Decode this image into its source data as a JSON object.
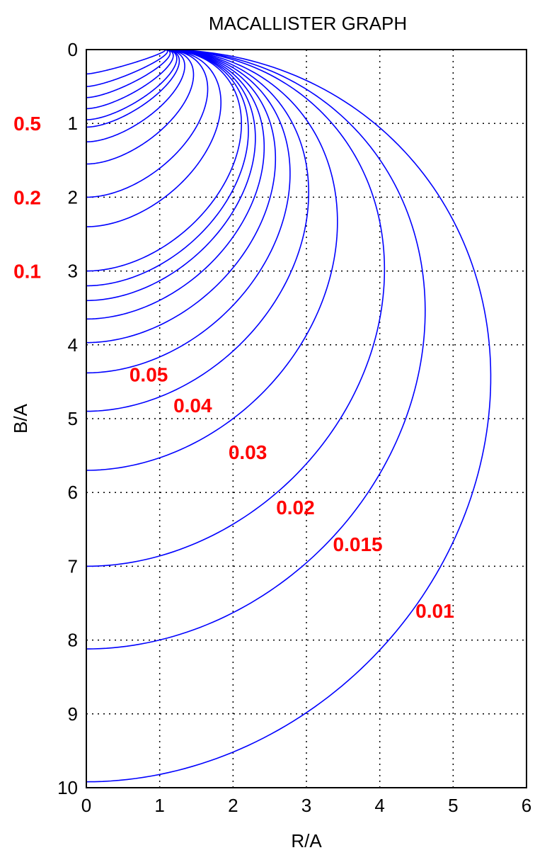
{
  "chart_data": {
    "type": "line",
    "title": "MACALLISTER GRAPH",
    "xlabel": "R/A",
    "ylabel": "B/A",
    "xlim": [
      0,
      6
    ],
    "ylim": [
      0,
      10
    ],
    "y_reversed": true,
    "grid": true,
    "grid_style": "dotted",
    "xticks": [
      "0",
      "1",
      "2",
      "3",
      "4",
      "5",
      "6"
    ],
    "yticks": [
      "0",
      "1",
      "2",
      "3",
      "4",
      "5",
      "6",
      "7",
      "8",
      "9",
      "10"
    ],
    "line_color": "#0000ff",
    "label_color": "#ff0000",
    "focus": [
      1.05,
      0
    ],
    "contours": [
      {
        "b0": 0.33
      },
      {
        "b0": 0.5
      },
      {
        "b0": 0.65
      },
      {
        "b0": 0.8
      },
      {
        "b0": 0.95,
        "label": "0.5",
        "label_at": [
          -0.95,
          1.0
        ]
      },
      {
        "b0": 1.05
      },
      {
        "b0": 1.25
      },
      {
        "b0": 1.55
      },
      {
        "b0": 2.0,
        "label": "0.2",
        "label_at": [
          -0.95,
          2.0
        ]
      },
      {
        "b0": 2.4
      },
      {
        "b0": 3.0,
        "label": "0.1",
        "label_at": [
          -0.95,
          3.0
        ]
      },
      {
        "b0": 3.2
      },
      {
        "b0": 3.4
      },
      {
        "b0": 3.65
      },
      {
        "b0": 3.97
      },
      {
        "b0": 4.38,
        "label": "0.05",
        "label_at": [
          0.85,
          4.4
        ]
      },
      {
        "b0": 4.9,
        "label": "0.04",
        "label_at": [
          1.45,
          4.82
        ]
      },
      {
        "b0": 5.7,
        "label": "0.03",
        "label_at": [
          2.2,
          5.45
        ]
      },
      {
        "b0": 7.0,
        "label": "0.02",
        "label_at": [
          2.85,
          6.2
        ]
      },
      {
        "b0": 8.12,
        "label": "0.015",
        "label_at": [
          3.7,
          6.7
        ]
      },
      {
        "b0": 9.92,
        "label": "0.01",
        "label_at": [
          4.75,
          7.6
        ]
      }
    ]
  }
}
